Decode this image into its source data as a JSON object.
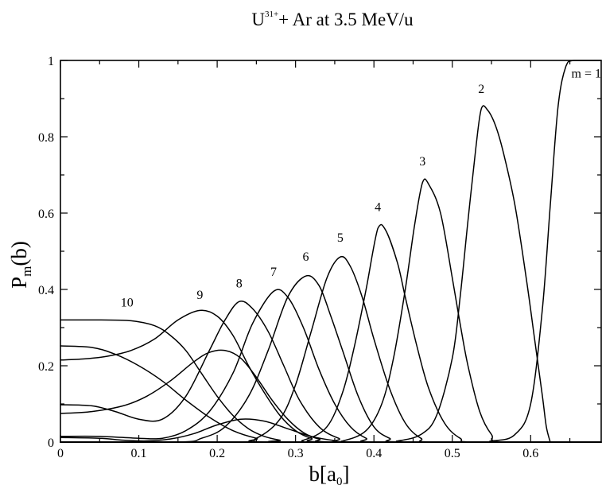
{
  "chart_data": {
    "type": "line",
    "title": {
      "ion": "U",
      "charge": "31+",
      "rest": "+  Ar   at  3.5  MeV/u"
    },
    "xlabel": {
      "main": "b[a",
      "sub": "0",
      "close": "]"
    },
    "ylabel": {
      "main": "P",
      "sub": "m",
      "rest": "(b)"
    },
    "xlim": [
      0,
      0.69
    ],
    "ylim": [
      0,
      1
    ],
    "xticks": [
      0,
      0.1,
      0.2,
      0.3,
      0.4,
      0.5,
      0.6
    ],
    "xtick_labels": [
      "0",
      "0.1",
      "0.2",
      "0.3",
      "0.4",
      "0.5",
      "0.6"
    ],
    "yticks": [
      0,
      0.2,
      0.4,
      0.6,
      0.8,
      1
    ],
    "ytick_labels": [
      "0",
      "0.2",
      "0.4",
      "0.6",
      "0.8",
      "1"
    ],
    "grid": false,
    "series": [
      {
        "label": "m = 1",
        "label_x": 0.652,
        "label_y": 0.955,
        "points": [
          [
            0.0,
            0.0
          ],
          [
            0.5,
            0.0
          ],
          [
            0.55,
            0.003
          ],
          [
            0.58,
            0.02
          ],
          [
            0.6,
            0.1
          ],
          [
            0.615,
            0.35
          ],
          [
            0.625,
            0.62
          ],
          [
            0.635,
            0.88
          ],
          [
            0.645,
            0.985
          ],
          [
            0.655,
            1.0
          ],
          [
            0.69,
            1.0
          ]
        ]
      },
      {
        "label": "2",
        "label_x": 0.537,
        "label_y": 0.915,
        "points": [
          [
            0.0,
            0.0
          ],
          [
            0.4,
            0.0
          ],
          [
            0.43,
            0.003
          ],
          [
            0.46,
            0.02
          ],
          [
            0.48,
            0.07
          ],
          [
            0.5,
            0.22
          ],
          [
            0.51,
            0.38
          ],
          [
            0.52,
            0.58
          ],
          [
            0.53,
            0.77
          ],
          [
            0.537,
            0.873
          ],
          [
            0.545,
            0.87
          ],
          [
            0.555,
            0.83
          ],
          [
            0.565,
            0.76
          ],
          [
            0.58,
            0.62
          ],
          [
            0.595,
            0.42
          ],
          [
            0.605,
            0.27
          ],
          [
            0.615,
            0.12
          ],
          [
            0.62,
            0.04
          ],
          [
            0.625,
            0.0
          ]
        ]
      },
      {
        "label": "3",
        "label_x": 0.462,
        "label_y": 0.725,
        "points": [
          [
            0.0,
            0.0
          ],
          [
            0.33,
            0.0
          ],
          [
            0.36,
            0.003
          ],
          [
            0.39,
            0.03
          ],
          [
            0.41,
            0.1
          ],
          [
            0.425,
            0.22
          ],
          [
            0.44,
            0.4
          ],
          [
            0.452,
            0.57
          ],
          [
            0.462,
            0.68
          ],
          [
            0.47,
            0.675
          ],
          [
            0.485,
            0.6
          ],
          [
            0.5,
            0.43
          ],
          [
            0.51,
            0.31
          ],
          [
            0.52,
            0.2
          ],
          [
            0.535,
            0.08
          ],
          [
            0.55,
            0.02
          ],
          [
            0.565,
            0.0
          ],
          [
            0.69,
            0.0
          ]
        ]
      },
      {
        "label": "4",
        "label_x": 0.405,
        "label_y": 0.605,
        "points": [
          [
            0.0,
            0.0
          ],
          [
            0.28,
            0.0
          ],
          [
            0.31,
            0.005
          ],
          [
            0.34,
            0.04
          ],
          [
            0.36,
            0.13
          ],
          [
            0.375,
            0.25
          ],
          [
            0.39,
            0.4
          ],
          [
            0.405,
            0.56
          ],
          [
            0.415,
            0.555
          ],
          [
            0.43,
            0.47
          ],
          [
            0.44,
            0.38
          ],
          [
            0.455,
            0.25
          ],
          [
            0.47,
            0.14
          ],
          [
            0.49,
            0.05
          ],
          [
            0.51,
            0.01
          ],
          [
            0.53,
            0.0
          ],
          [
            0.69,
            0.0
          ]
        ]
      },
      {
        "label": "5",
        "label_x": 0.357,
        "label_y": 0.525,
        "points": [
          [
            0.0,
            0.0
          ],
          [
            0.22,
            0.0
          ],
          [
            0.25,
            0.01
          ],
          [
            0.28,
            0.06
          ],
          [
            0.3,
            0.15
          ],
          [
            0.32,
            0.29
          ],
          [
            0.34,
            0.43
          ],
          [
            0.357,
            0.485
          ],
          [
            0.37,
            0.46
          ],
          [
            0.385,
            0.38
          ],
          [
            0.4,
            0.27
          ],
          [
            0.42,
            0.14
          ],
          [
            0.44,
            0.05
          ],
          [
            0.46,
            0.01
          ],
          [
            0.48,
            0.0
          ],
          [
            0.69,
            0.0
          ]
        ]
      },
      {
        "label": "6",
        "label_x": 0.313,
        "label_y": 0.475,
        "points": [
          [
            0.0,
            0.0
          ],
          [
            0.15,
            0.0
          ],
          [
            0.18,
            0.01
          ],
          [
            0.21,
            0.04
          ],
          [
            0.24,
            0.12
          ],
          [
            0.265,
            0.24
          ],
          [
            0.29,
            0.38
          ],
          [
            0.313,
            0.435
          ],
          [
            0.33,
            0.41
          ],
          [
            0.345,
            0.33
          ],
          [
            0.36,
            0.24
          ],
          [
            0.38,
            0.12
          ],
          [
            0.4,
            0.04
          ],
          [
            0.42,
            0.01
          ],
          [
            0.44,
            0.0
          ],
          [
            0.69,
            0.0
          ]
        ]
      },
      {
        "label": "7",
        "label_x": 0.272,
        "label_y": 0.435,
        "points": [
          [
            0.0,
            0.015
          ],
          [
            0.05,
            0.015
          ],
          [
            0.1,
            0.01
          ],
          [
            0.13,
            0.01
          ],
          [
            0.16,
            0.03
          ],
          [
            0.19,
            0.08
          ],
          [
            0.22,
            0.18
          ],
          [
            0.245,
            0.31
          ],
          [
            0.272,
            0.395
          ],
          [
            0.29,
            0.38
          ],
          [
            0.31,
            0.3
          ],
          [
            0.33,
            0.19
          ],
          [
            0.35,
            0.1
          ],
          [
            0.37,
            0.04
          ],
          [
            0.39,
            0.01
          ],
          [
            0.41,
            0.0
          ],
          [
            0.69,
            0.0
          ]
        ]
      },
      {
        "label": "8",
        "label_x": 0.228,
        "label_y": 0.405,
        "points": [
          [
            0.0,
            0.098
          ],
          [
            0.04,
            0.095
          ],
          [
            0.07,
            0.08
          ],
          [
            0.1,
            0.06
          ],
          [
            0.13,
            0.06
          ],
          [
            0.16,
            0.12
          ],
          [
            0.19,
            0.24
          ],
          [
            0.21,
            0.32
          ],
          [
            0.228,
            0.368
          ],
          [
            0.245,
            0.35
          ],
          [
            0.265,
            0.29
          ],
          [
            0.285,
            0.2
          ],
          [
            0.305,
            0.11
          ],
          [
            0.33,
            0.04
          ],
          [
            0.355,
            0.01
          ],
          [
            0.38,
            0.0
          ],
          [
            0.69,
            0.0
          ]
        ]
      },
      {
        "label": "9",
        "label_x": 0.178,
        "label_y": 0.375,
        "points": [
          [
            0.0,
            0.215
          ],
          [
            0.03,
            0.218
          ],
          [
            0.06,
            0.225
          ],
          [
            0.09,
            0.24
          ],
          [
            0.12,
            0.27
          ],
          [
            0.15,
            0.32
          ],
          [
            0.178,
            0.345
          ],
          [
            0.2,
            0.33
          ],
          [
            0.22,
            0.28
          ],
          [
            0.24,
            0.2
          ],
          [
            0.26,
            0.13
          ],
          [
            0.28,
            0.07
          ],
          [
            0.3,
            0.03
          ],
          [
            0.32,
            0.01
          ],
          [
            0.35,
            0.0
          ],
          [
            0.69,
            0.0
          ]
        ]
      },
      {
        "label": "10",
        "label_x": 0.085,
        "label_y": 0.355,
        "points": [
          [
            0.0,
            0.32
          ],
          [
            0.05,
            0.32
          ],
          [
            0.09,
            0.318
          ],
          [
            0.12,
            0.305
          ],
          [
            0.14,
            0.28
          ],
          [
            0.16,
            0.24
          ],
          [
            0.18,
            0.18
          ],
          [
            0.2,
            0.12
          ],
          [
            0.22,
            0.07
          ],
          [
            0.24,
            0.035
          ],
          [
            0.26,
            0.015
          ],
          [
            0.28,
            0.005
          ],
          [
            0.3,
            0.0
          ],
          [
            0.69,
            0.0
          ]
        ]
      },
      {
        "label": "",
        "label_x": null,
        "label_y": null,
        "points": [
          [
            0.0,
            0.252
          ],
          [
            0.04,
            0.248
          ],
          [
            0.07,
            0.23
          ],
          [
            0.1,
            0.2
          ],
          [
            0.13,
            0.16
          ],
          [
            0.16,
            0.11
          ],
          [
            0.19,
            0.065
          ],
          [
            0.22,
            0.03
          ],
          [
            0.25,
            0.01
          ],
          [
            0.28,
            0.0
          ],
          [
            0.69,
            0.0
          ]
        ]
      },
      {
        "label": "",
        "label_x": null,
        "label_y": null,
        "points": [
          [
            0.0,
            0.075
          ],
          [
            0.04,
            0.08
          ],
          [
            0.08,
            0.095
          ],
          [
            0.11,
            0.12
          ],
          [
            0.14,
            0.16
          ],
          [
            0.17,
            0.21
          ],
          [
            0.19,
            0.235
          ],
          [
            0.21,
            0.24
          ],
          [
            0.23,
            0.22
          ],
          [
            0.25,
            0.17
          ],
          [
            0.27,
            0.11
          ],
          [
            0.29,
            0.06
          ],
          [
            0.31,
            0.025
          ],
          [
            0.33,
            0.008
          ],
          [
            0.36,
            0.0
          ],
          [
            0.69,
            0.0
          ]
        ]
      },
      {
        "label": "",
        "label_x": null,
        "label_y": null,
        "points": [
          [
            0.0,
            0.012
          ],
          [
            0.05,
            0.01
          ],
          [
            0.08,
            0.005
          ],
          [
            0.11,
            0.003
          ],
          [
            0.14,
            0.008
          ],
          [
            0.17,
            0.022
          ],
          [
            0.2,
            0.045
          ],
          [
            0.23,
            0.06
          ],
          [
            0.26,
            0.055
          ],
          [
            0.29,
            0.035
          ],
          [
            0.32,
            0.015
          ],
          [
            0.35,
            0.004
          ],
          [
            0.38,
            0.0
          ],
          [
            0.69,
            0.0
          ]
        ]
      }
    ]
  }
}
